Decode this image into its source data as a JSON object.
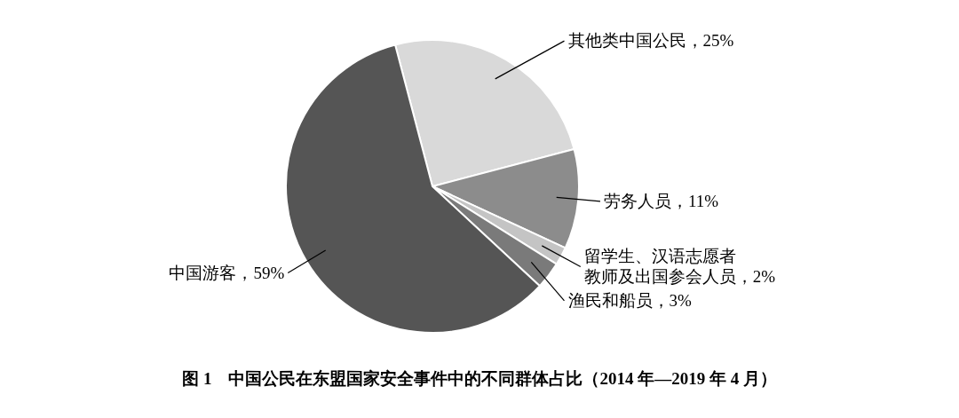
{
  "chart_data": {
    "type": "pie",
    "title": "图 1　中国公民在东盟国家安全事件中的不同群体占比（2014 年—2019 年 4 月）",
    "categories": [
      "其他类中国公民",
      "劳务人员",
      "留学生、汉语志愿者教师及出国参会人员",
      "渔民和船员",
      "中国游客"
    ],
    "values": [
      25,
      11,
      2,
      3,
      59
    ],
    "value_labels": [
      "25%",
      "11%",
      "2%",
      "3%",
      "59%"
    ],
    "colors": [
      "#d9d9d9",
      "#8c8c8c",
      "#c4c4c4",
      "#7a7a7a",
      "#555555"
    ]
  }
}
